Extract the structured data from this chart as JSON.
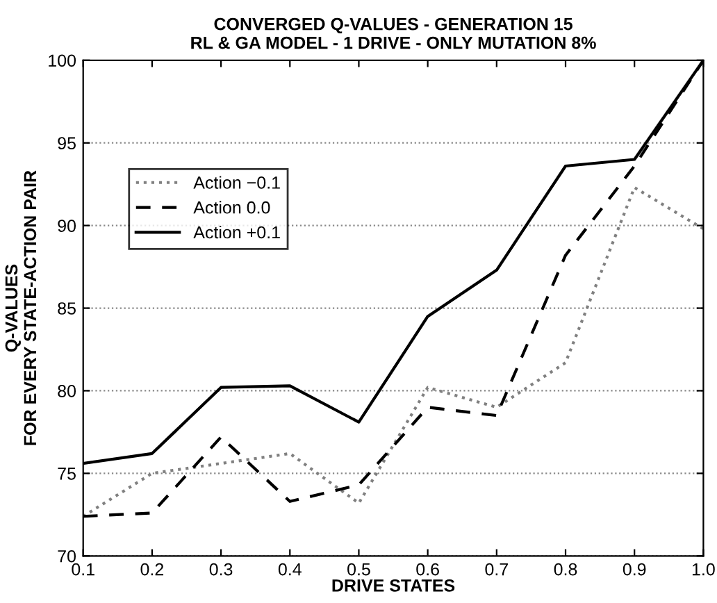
{
  "chart_data": {
    "type": "line",
    "title": "CONVERGED Q-VALUES - GENERATION 15\nRL & GA MODEL - 1 DRIVE - ONLY MUTATION 8%",
    "xlabel": "DRIVE STATES",
    "ylabel": "Q-VALUES\nFOR EVERY STATE-ACTION PAIR",
    "x": [
      0.1,
      0.2,
      0.3,
      0.4,
      0.5,
      0.6,
      0.7,
      0.8,
      0.9,
      1.0
    ],
    "series": [
      {
        "name": "Action −0.1",
        "color": "#808080",
        "line_style": "dotted",
        "values": [
          72.4,
          75.0,
          75.6,
          76.2,
          73.2,
          80.2,
          79.0,
          81.7,
          92.3,
          89.8
        ]
      },
      {
        "name": "Action 0.0",
        "color": "#000000",
        "line_style": "dashed",
        "values": [
          72.4,
          72.6,
          77.2,
          73.3,
          74.3,
          79.0,
          78.5,
          88.2,
          93.6,
          100
        ]
      },
      {
        "name": "Action +0.1",
        "color": "#000000",
        "line_style": "solid",
        "values": [
          75.6,
          76.2,
          80.2,
          80.3,
          78.1,
          84.5,
          87.3,
          93.6,
          94.0,
          100
        ]
      }
    ],
    "xlim": [
      0.1,
      1.0
    ],
    "ylim": [
      70,
      100
    ],
    "xticks": [
      0.1,
      0.2,
      0.3,
      0.4,
      0.5,
      0.6,
      0.7,
      0.8,
      0.9,
      {
        "value": 1.0,
        "label": "1.0"
      }
    ],
    "yticks": [
      70,
      75,
      80,
      85,
      90,
      95,
      100
    ],
    "grid": "y",
    "legend": "left"
  }
}
